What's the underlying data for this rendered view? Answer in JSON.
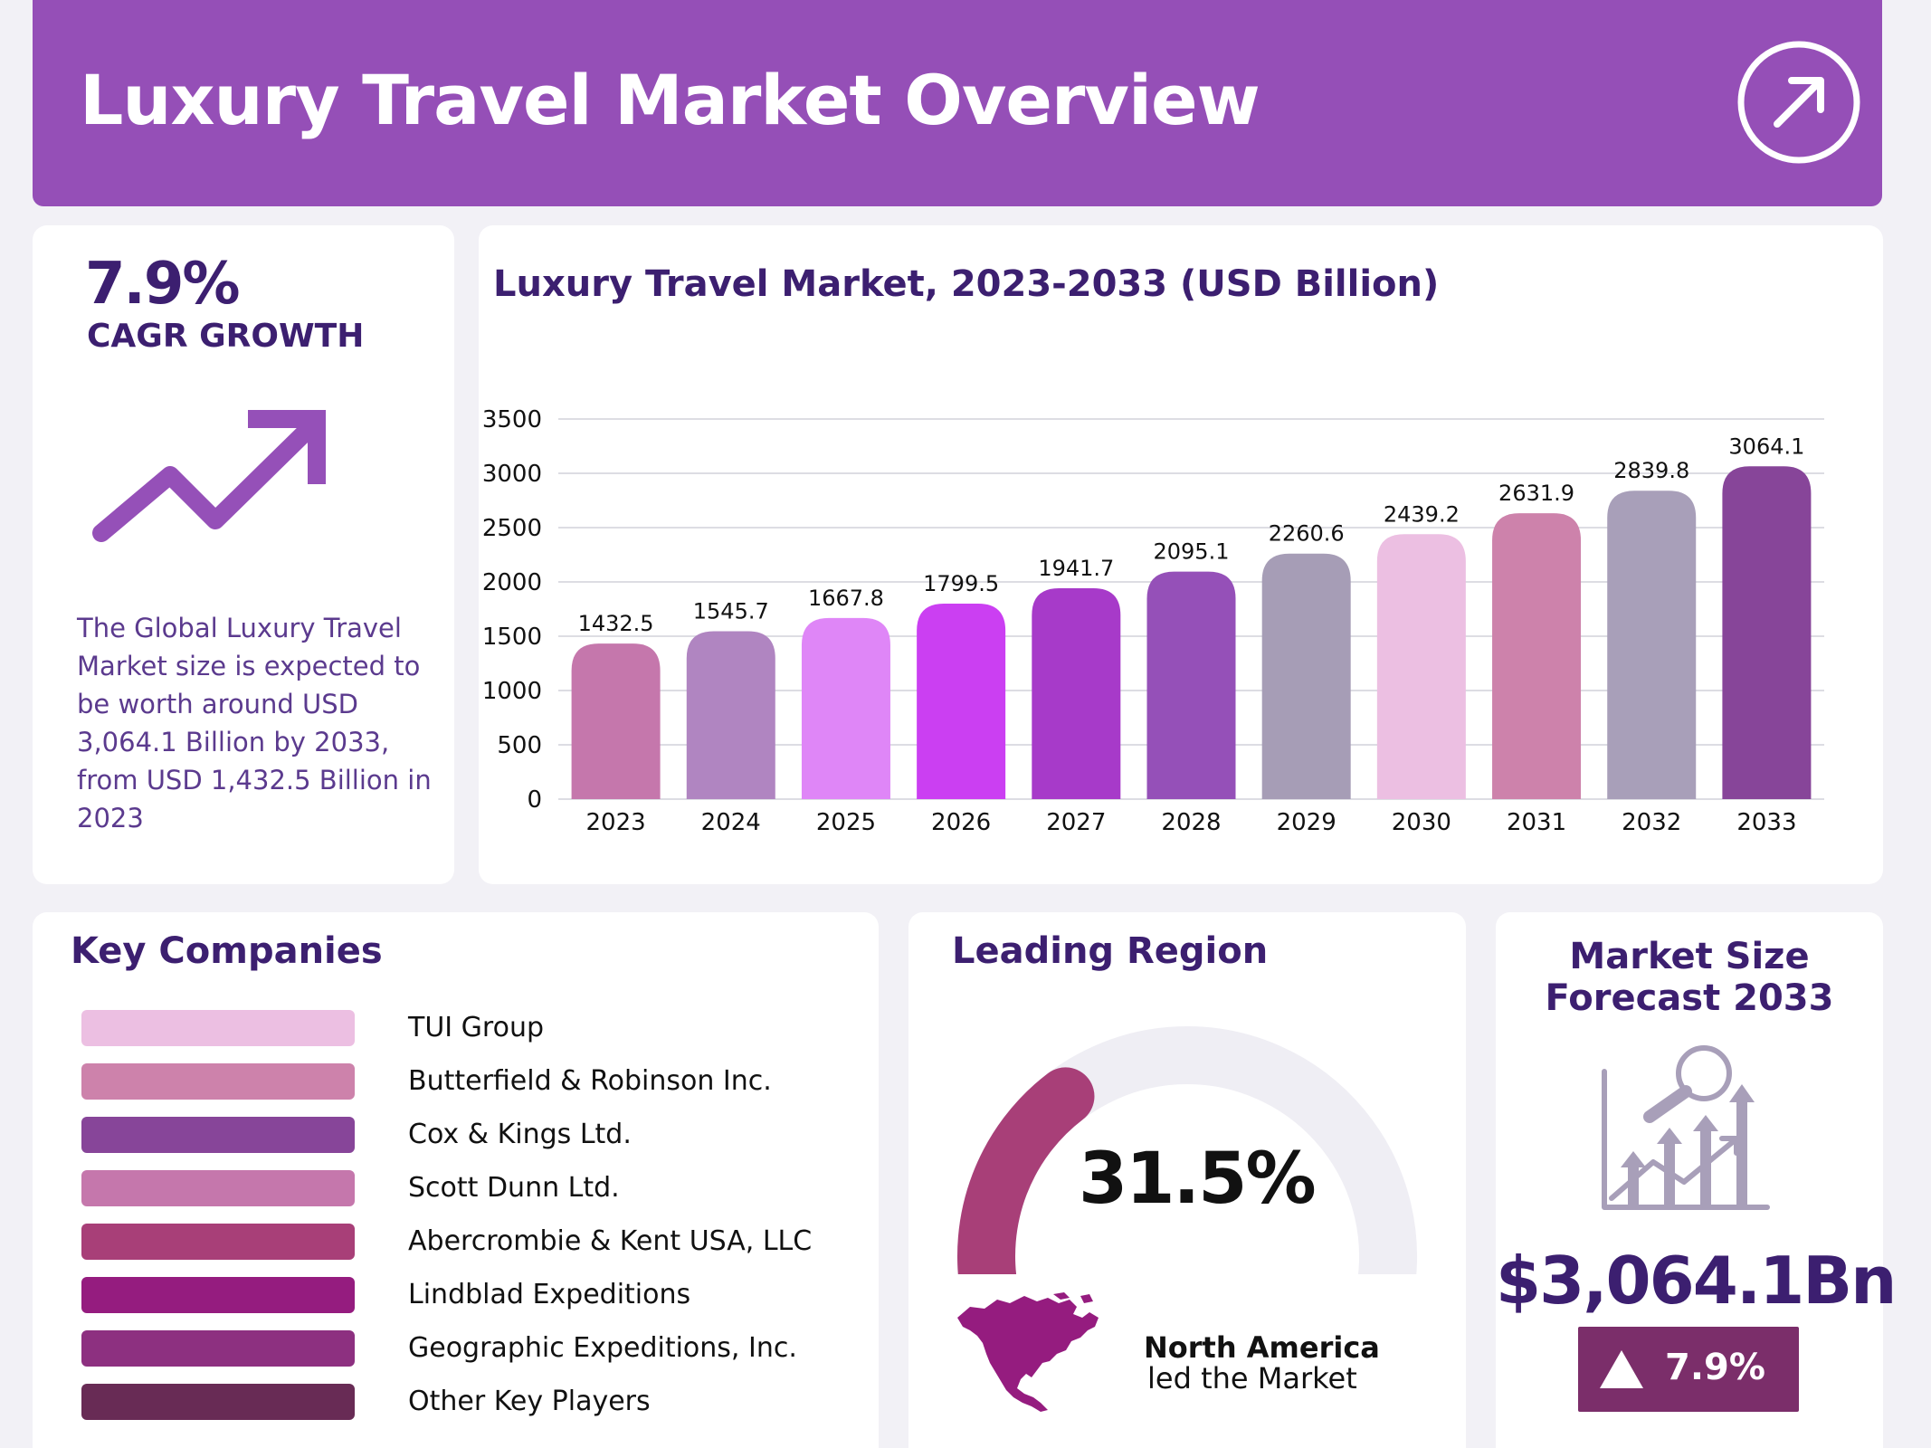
{
  "header": {
    "title": "Luxury Travel Market Overview",
    "arrow_icon": "arrow-up-right-icon"
  },
  "cagr": {
    "value": "7.9%",
    "label": "CAGR GROWTH",
    "trend_icon": "trend-up-icon",
    "description": "The Global Luxury Travel Market size is expected to be worth around USD 3,064.1 Billion by 2033, from USD 1,432.5 Billion in 2023"
  },
  "chart_data": {
    "type": "bar",
    "title": "Luxury Travel Market, 2023-2033 (USD Billion)",
    "xlabel": "",
    "ylabel": "",
    "categories": [
      "2023",
      "2024",
      "2025",
      "2026",
      "2027",
      "2028",
      "2029",
      "2030",
      "2031",
      "2032",
      "2033"
    ],
    "values": [
      1432.5,
      1545.7,
      1667.8,
      1799.5,
      1941.7,
      2095.1,
      2260.6,
      2439.2,
      2631.9,
      2839.8,
      3064.1
    ],
    "value_labels": [
      "1432.5",
      "1545.7",
      "1667.8",
      "1799.5",
      "1941.7",
      "2095.1",
      "2260.6",
      "2439.2",
      "2631.9",
      "2839.8",
      "3064.1"
    ],
    "colors": [
      "#c577ac",
      "#b085c1",
      "#df86f7",
      "#cb3ff2",
      "#a73ac9",
      "#9550b8",
      "#a69db6",
      "#ecbfe2",
      "#cd82ab",
      "#a89fb9",
      "#874599"
    ],
    "ylim": [
      0,
      3500
    ],
    "yticks": [
      "0",
      "500",
      "1000",
      "1500",
      "2000",
      "2500",
      "3000",
      "3500"
    ],
    "grid": true,
    "legend": "none"
  },
  "companies": {
    "title": "Key Companies",
    "items": [
      {
        "name": "TUI Group",
        "color": "#ecbfe2"
      },
      {
        "name": "Butterfield & Robinson Inc.",
        "color": "#cd82ab"
      },
      {
        "name": "Cox & Kings Ltd.",
        "color": "#874599"
      },
      {
        "name": "Scott Dunn Ltd.",
        "color": "#c577ac"
      },
      {
        "name": "Abercrombie & Kent USA, LLC",
        "color": "#a83f78"
      },
      {
        "name": "Lindblad Expeditions",
        "color": "#951c7f"
      },
      {
        "name": "Geographic Expeditions, Inc.",
        "color": "#8d3080"
      },
      {
        "name": "Other Key Players",
        "color": "#682b55"
      }
    ]
  },
  "region": {
    "title": "Leading Region",
    "share": 31.5,
    "share_label": "31.5%",
    "gauge_color": "#a83f78",
    "track_color": "#efeef4",
    "map_icon": "north-america-map-icon",
    "map_color": "#951c7f",
    "name": "North America",
    "subtitle": "led the Market"
  },
  "forecast": {
    "title": "Market Size Forecast 2033",
    "icon": "growth-analytics-icon",
    "value": "$3,064.1Bn",
    "badge_icon": "triangle-up-icon",
    "badge_text": "7.9%",
    "badge_color": "#7b2e6a"
  }
}
